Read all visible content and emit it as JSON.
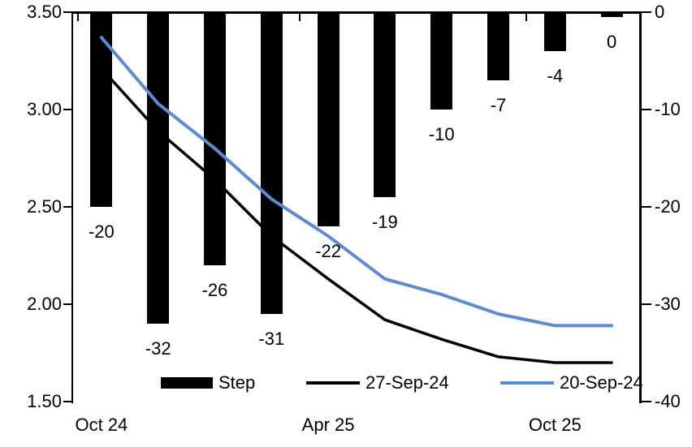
{
  "chart_data": {
    "type": "bar",
    "subtype": "combo-bar-line-dual-axis",
    "title": "",
    "slots": 10,
    "bars": {
      "name": "Step",
      "axis": "right",
      "color": "#000000",
      "values": [
        -20,
        -32,
        -26,
        -31,
        -22,
        -19,
        -10,
        -7,
        -4,
        -0.5
      ],
      "labels": [
        "-20",
        "-32",
        "-26",
        "-31",
        "-22",
        "-19",
        "-10",
        "-7",
        "-4",
        "0"
      ]
    },
    "lines": [
      {
        "name": "27-Sep-24",
        "axis": "left",
        "color": "#000000",
        "stroke_width": 3.5,
        "values": [
          3.21,
          2.89,
          2.64,
          2.35,
          2.13,
          1.92,
          1.82,
          1.73,
          1.7,
          1.7
        ]
      },
      {
        "name": "20-Sep-24",
        "axis": "left",
        "color": "#5B8BD5",
        "stroke_width": 4,
        "values": [
          3.37,
          3.03,
          2.8,
          2.54,
          2.35,
          2.13,
          2.05,
          1.95,
          1.89,
          1.89
        ]
      }
    ],
    "left_axis": {
      "min": 1.5,
      "max": 3.5,
      "tick_labels": [
        "3.50",
        "3.00",
        "2.50",
        "2.00",
        "1.50"
      ],
      "tick_values": [
        3.5,
        3.0,
        2.5,
        2.0,
        1.5
      ]
    },
    "right_axis": {
      "min": -40,
      "max": 0,
      "tick_labels": [
        "0",
        "-10",
        "-20",
        "-30",
        "-40"
      ],
      "tick_values": [
        0,
        -10,
        -20,
        -30,
        -40
      ]
    },
    "x_axis": {
      "tick_labels": [
        {
          "label": "Oct 24",
          "slot": 0
        },
        {
          "label": "Apr 25",
          "slot": 4
        },
        {
          "label": "Oct 25",
          "slot": 8
        }
      ],
      "boundary_tick_slots": [
        0,
        4,
        8
      ],
      "grid": false
    },
    "legend": {
      "position": "bottom",
      "items": [
        {
          "label": "Step",
          "type": "bar",
          "color": "#000000"
        },
        {
          "label": "27-Sep-24",
          "type": "line",
          "color": "#000000"
        },
        {
          "label": "20-Sep-24",
          "type": "line",
          "color": "#5B8BD5"
        }
      ]
    }
  }
}
